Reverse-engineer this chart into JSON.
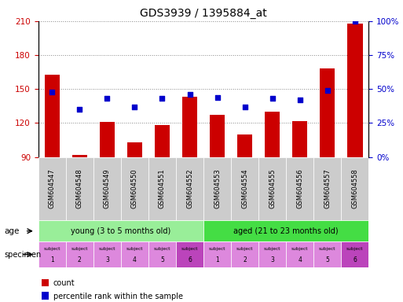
{
  "title": "GDS3939 / 1395884_at",
  "samples": [
    "GSM604547",
    "GSM604548",
    "GSM604549",
    "GSM604550",
    "GSM604551",
    "GSM604552",
    "GSM604553",
    "GSM604554",
    "GSM604555",
    "GSM604556",
    "GSM604557",
    "GSM604558"
  ],
  "counts": [
    163,
    92,
    121,
    103,
    118,
    143,
    127,
    110,
    130,
    122,
    168,
    208
  ],
  "percentile_ranks": [
    48,
    35,
    43,
    37,
    43,
    46,
    44,
    37,
    43,
    42,
    49,
    100
  ],
  "ylim_left": [
    90,
    210
  ],
  "yticks_left": [
    90,
    120,
    150,
    180,
    210
  ],
  "ylim_right": [
    0,
    100
  ],
  "yticks_right": [
    0,
    25,
    50,
    75,
    100
  ],
  "bar_color": "#cc0000",
  "dot_color": "#0000cc",
  "age_groups": [
    {
      "label": "young (3 to 5 months old)",
      "start": 0,
      "end": 6,
      "color": "#99ee99"
    },
    {
      "label": "aged (21 to 23 months old)",
      "start": 6,
      "end": 12,
      "color": "#44dd44"
    }
  ],
  "specimen_colors_light": "#dd88dd",
  "specimen_colors_dark": "#bb44bb",
  "specimen_dark_indices": [
    5,
    11
  ],
  "specimen_labels_top": [
    "subject",
    "subject",
    "subject",
    "subject",
    "subject",
    "subject",
    "subject",
    "subject",
    "subject",
    "subject",
    "subject",
    "subject"
  ],
  "specimen_labels_bot": [
    "1",
    "2",
    "3",
    "4",
    "5",
    "6",
    "1",
    "2",
    "3",
    "4",
    "5",
    "6"
  ],
  "sample_bg_color": "#cccccc",
  "grid_color": "#888888",
  "bar_color_left": "#cc0000",
  "dot_color_right": "#0000cc",
  "bg_color": "#ffffff"
}
